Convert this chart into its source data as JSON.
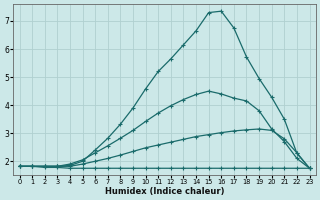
{
  "xlabel": "Humidex (Indice chaleur)",
  "bg_color": "#cce8e8",
  "grid_color": "#b0d0d0",
  "line_color": "#1a6b6b",
  "xlim": [
    -0.5,
    23.5
  ],
  "ylim": [
    1.5,
    7.6
  ],
  "xticks": [
    0,
    1,
    2,
    3,
    4,
    5,
    6,
    7,
    8,
    9,
    10,
    11,
    12,
    13,
    14,
    15,
    16,
    17,
    18,
    19,
    20,
    21,
    22,
    23
  ],
  "yticks": [
    2,
    3,
    4,
    5,
    6,
    7
  ],
  "line1_x": [
    0,
    1,
    2,
    3,
    4,
    5,
    6,
    7,
    8,
    9,
    10,
    11,
    12,
    13,
    14,
    15,
    16,
    17,
    18,
    19,
    20,
    21,
    22,
    23
  ],
  "line1_y": [
    1.82,
    1.82,
    1.78,
    1.78,
    1.75,
    1.75,
    1.75,
    1.75,
    1.75,
    1.75,
    1.75,
    1.75,
    1.75,
    1.75,
    1.75,
    1.75,
    1.75,
    1.75,
    1.75,
    1.75,
    1.75,
    1.75,
    1.75,
    1.75
  ],
  "line2_x": [
    0,
    1,
    2,
    3,
    4,
    5,
    6,
    7,
    8,
    9,
    10,
    11,
    12,
    13,
    14,
    15,
    16,
    17,
    18,
    19,
    20,
    21,
    22,
    23
  ],
  "line2_y": [
    1.82,
    1.82,
    1.82,
    1.82,
    1.82,
    1.9,
    2.0,
    2.1,
    2.22,
    2.35,
    2.48,
    2.58,
    2.68,
    2.78,
    2.88,
    2.95,
    3.02,
    3.08,
    3.12,
    3.15,
    3.1,
    2.8,
    2.3,
    1.75
  ],
  "line3_x": [
    0,
    1,
    2,
    3,
    4,
    5,
    6,
    7,
    8,
    9,
    10,
    11,
    12,
    13,
    14,
    15,
    16,
    17,
    18,
    19,
    20,
    21,
    22,
    23
  ],
  "line3_y": [
    1.82,
    1.82,
    1.82,
    1.82,
    1.9,
    2.05,
    2.3,
    2.55,
    2.82,
    3.1,
    3.42,
    3.72,
    3.98,
    4.2,
    4.38,
    4.5,
    4.4,
    4.25,
    4.15,
    3.8,
    3.15,
    2.7,
    2.1,
    1.75
  ],
  "line4_x": [
    0,
    1,
    2,
    3,
    4,
    5,
    6,
    7,
    8,
    9,
    10,
    11,
    12,
    13,
    14,
    15,
    16,
    17,
    18,
    19,
    20,
    21,
    22,
    23
  ],
  "line4_y": [
    1.82,
    1.82,
    1.82,
    1.82,
    1.85,
    2.0,
    2.4,
    2.82,
    3.32,
    3.9,
    4.58,
    5.2,
    5.65,
    6.15,
    6.65,
    7.3,
    7.35,
    6.75,
    5.72,
    4.95,
    4.28,
    3.5,
    2.28,
    1.75
  ]
}
